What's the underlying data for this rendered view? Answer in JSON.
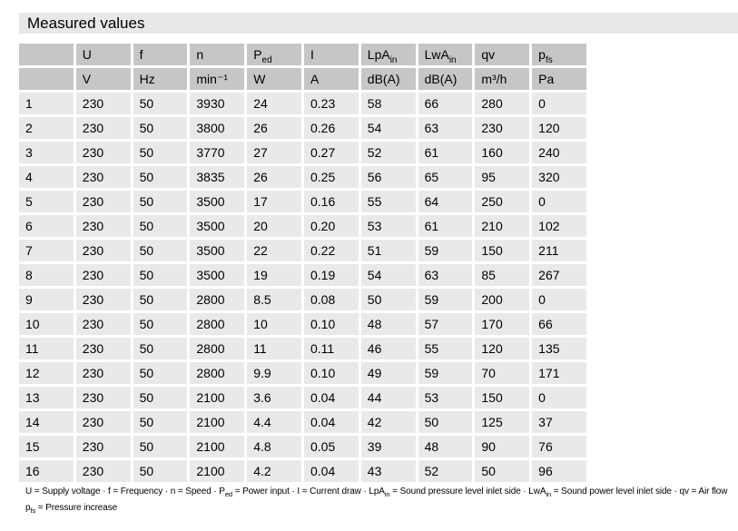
{
  "title": "Measured values",
  "colors": {
    "title_band_bg": "#e8e8e8",
    "header_cell_bg": "#c6c6c6",
    "data_cell_bg": "#e9e9e9"
  },
  "table": {
    "columns": [
      {
        "base": "",
        "sub": "",
        "unit": ""
      },
      {
        "base": "U",
        "sub": "",
        "unit": "V"
      },
      {
        "base": "f",
        "sub": "",
        "unit": "Hz"
      },
      {
        "base": "n",
        "sub": "",
        "unit": "min⁻¹"
      },
      {
        "base": "P",
        "sub": "ed",
        "unit": "W"
      },
      {
        "base": "I",
        "sub": "",
        "unit": "A"
      },
      {
        "base": "LpA",
        "sub": "in",
        "unit": "dB(A)"
      },
      {
        "base": "LwA",
        "sub": "in",
        "unit": "dB(A)"
      },
      {
        "base": "qv",
        "sub": "",
        "unit": "m³/h"
      },
      {
        "base": "p",
        "sub": "fs",
        "unit": "Pa"
      }
    ],
    "rows": [
      [
        "1",
        "230",
        "50",
        "3930",
        "24",
        "0.23",
        "58",
        "66",
        "280",
        "0"
      ],
      [
        "2",
        "230",
        "50",
        "3800",
        "26",
        "0.26",
        "54",
        "63",
        "230",
        "120"
      ],
      [
        "3",
        "230",
        "50",
        "3770",
        "27",
        "0.27",
        "52",
        "61",
        "160",
        "240"
      ],
      [
        "4",
        "230",
        "50",
        "3835",
        "26",
        "0.25",
        "56",
        "65",
        "95",
        "320"
      ],
      [
        "5",
        "230",
        "50",
        "3500",
        "17",
        "0.16",
        "55",
        "64",
        "250",
        "0"
      ],
      [
        "6",
        "230",
        "50",
        "3500",
        "20",
        "0.20",
        "53",
        "61",
        "210",
        "102"
      ],
      [
        "7",
        "230",
        "50",
        "3500",
        "22",
        "0.22",
        "51",
        "59",
        "150",
        "211"
      ],
      [
        "8",
        "230",
        "50",
        "3500",
        "19",
        "0.19",
        "54",
        "63",
        "85",
        "267"
      ],
      [
        "9",
        "230",
        "50",
        "2800",
        "8.5",
        "0.08",
        "50",
        "59",
        "200",
        "0"
      ],
      [
        "10",
        "230",
        "50",
        "2800",
        "10",
        "0.10",
        "48",
        "57",
        "170",
        "66"
      ],
      [
        "11",
        "230",
        "50",
        "2800",
        "11",
        "0.11",
        "46",
        "55",
        "120",
        "135"
      ],
      [
        "12",
        "230",
        "50",
        "2800",
        "9.9",
        "0.10",
        "49",
        "59",
        "70",
        "171"
      ],
      [
        "13",
        "230",
        "50",
        "2100",
        "3.6",
        "0.04",
        "44",
        "53",
        "150",
        "0"
      ],
      [
        "14",
        "230",
        "50",
        "2100",
        "4.4",
        "0.04",
        "42",
        "50",
        "125",
        "37"
      ],
      [
        "15",
        "230",
        "50",
        "2100",
        "4.8",
        "0.05",
        "39",
        "48",
        "90",
        "76"
      ],
      [
        "16",
        "230",
        "50",
        "2100",
        "4.2",
        "0.04",
        "43",
        "52",
        "50",
        "96"
      ]
    ]
  },
  "legend": {
    "line1": [
      "U = Supply voltage · f = Frequency · n = Speed · P",
      "ed",
      " = Power input · I = Current draw · LpA",
      "in",
      " = Sound pressure level inlet side · LwA",
      "in",
      " = Sound power level inlet side · qv = Air flow"
    ],
    "line2": [
      "p",
      "fs",
      " = Pressure increase"
    ]
  }
}
